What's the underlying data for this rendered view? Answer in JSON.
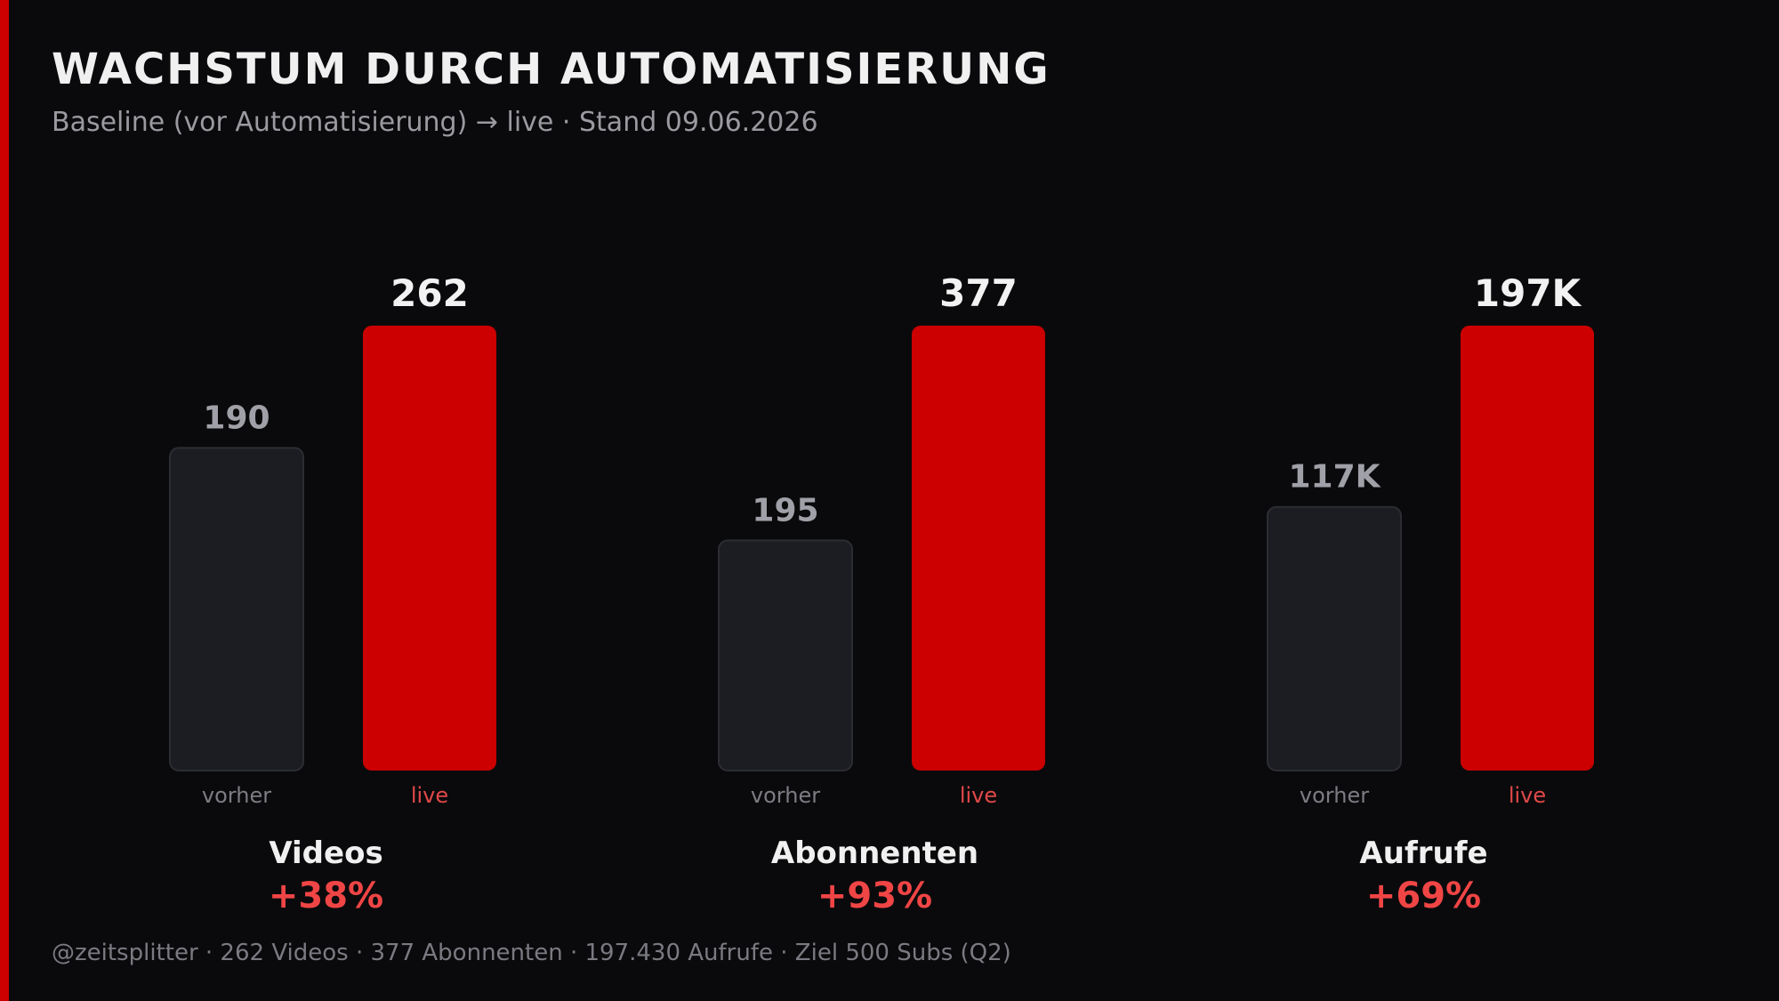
{
  "header": {
    "title": "WACHSTUM DURCH AUTOMATISIERUNG",
    "subtitle": "Baseline (vor Automatisierung) → live · Stand 09.06.2026"
  },
  "footer": {
    "text": "@zeitsplitter · 262 Videos · 377 Abonnenten · 197.430 Aufrufe · Ziel 500 Subs (Q2)"
  },
  "colors": {
    "accent": "#cc0000",
    "background": "#0a0a0c",
    "before_bar": "#1c1d22",
    "growth_text": "#f04545"
  },
  "chart_data": [
    {
      "type": "bar",
      "category": "Videos",
      "categories": [
        "vorher",
        "live"
      ],
      "values": [
        190,
        262
      ],
      "value_labels": [
        "190",
        "262"
      ],
      "growth": "+38%"
    },
    {
      "type": "bar",
      "category": "Abonnenten",
      "categories": [
        "vorher",
        "live"
      ],
      "values": [
        195,
        377
      ],
      "value_labels": [
        "195",
        "377"
      ],
      "growth": "+93%"
    },
    {
      "type": "bar",
      "category": "Aufrufe",
      "categories": [
        "vorher",
        "live"
      ],
      "values": [
        117000,
        197430
      ],
      "value_labels": [
        "117K",
        "197K"
      ],
      "growth": "+69%"
    }
  ]
}
